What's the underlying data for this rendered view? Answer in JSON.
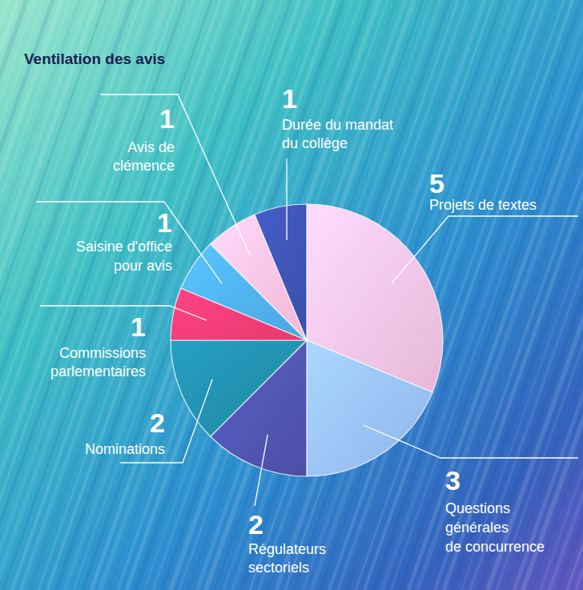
{
  "chart_data": {
    "type": "pie",
    "title": "Ventilation des avis",
    "categories": [
      "Projets de textes",
      "Questions générales de concurrence",
      "Régulateurs sectoriels",
      "Nominations",
      "Commissions parlementaires",
      "Saisine d'office pour avis",
      "Avis de clémence",
      "Durée du mandat du collège"
    ],
    "values": [
      5,
      3,
      2,
      2,
      1,
      1,
      1,
      1
    ],
    "colors": [
      "#e6b8d8",
      "#8fb4ec",
      "#4b4fa6",
      "#1f86a3",
      "#e8396f",
      "#4aa6df",
      "#f2b6d4",
      "#3a4fa8"
    ],
    "data_labels": true
  }
}
